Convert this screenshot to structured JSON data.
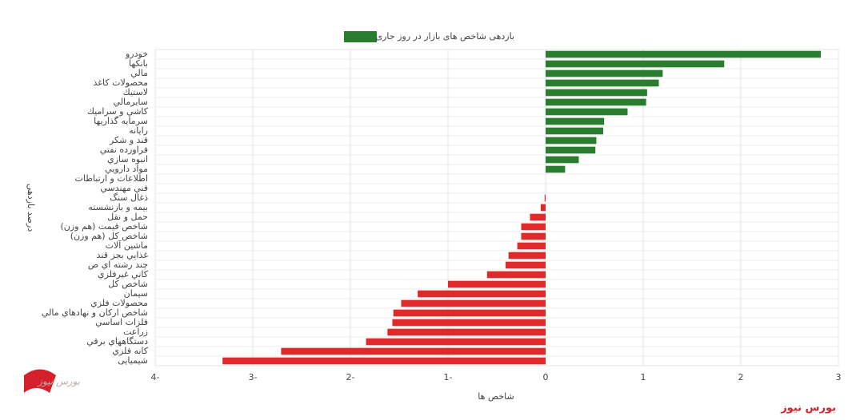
{
  "chart_data": {
    "type": "hbar",
    "legend": "بازدهی شاخص های بازار در روز جاری",
    "x_label": "شاخص ها",
    "y_label": "درصد بازدهی",
    "brand": "بورس نیوز",
    "logo_text": "بورس نیوز",
    "positive_color": "#2a7d2e",
    "negative_color": "#e0292b",
    "categories": [
      "خودرو",
      "بانکها",
      "مالي",
      "محصولات کاغذ",
      "لاستيك",
      "سايرمالي",
      "کاشي و سراميك",
      "سرمايه گذاريها",
      "رايانه",
      "قند و شکر",
      "فراورده نفتي",
      "انبوه سازي",
      "مواد دارويي",
      "اطلاعات و ارتباطات",
      "فني مهندسي",
      "ذغال سنگ",
      "بيمه و بازنشسته",
      "حمل و نقل",
      "شاخص قيمت (هم وزن)",
      "شاخص کل (هم وزن)",
      "ماشين آلات",
      "غذايي بجز قند",
      "چند رشته اي ص",
      "کاني غيرفلزي",
      "شاخص کل",
      "سيمان",
      "محصولات فلزي",
      "شاخص اركان و نهادهاي مالي",
      "فلزات اساسي",
      "زراعت",
      "دستگاههاي برقي",
      "کانه فلزي",
      "شیمیایی"
    ],
    "values": [
      2.82,
      1.83,
      1.2,
      1.16,
      1.04,
      1.03,
      0.84,
      0.6,
      0.59,
      0.52,
      0.51,
      0.34,
      0.2,
      0,
      0,
      -0.01,
      -0.05,
      -0.16,
      -0.25,
      -0.25,
      -0.29,
      -0.38,
      -0.41,
      -0.6,
      -1.0,
      -1.31,
      -1.48,
      -1.56,
      -1.57,
      -1.62,
      -1.84,
      -2.71,
      -3.31
    ],
    "xlim": [
      -4,
      3
    ],
    "xticks": [
      {
        "value": -4,
        "label": "4-"
      },
      {
        "value": -3,
        "label": "3-"
      },
      {
        "value": -2,
        "label": "2-"
      },
      {
        "value": -1,
        "label": "1-"
      },
      0,
      1,
      2,
      3
    ],
    "grid": true
  }
}
